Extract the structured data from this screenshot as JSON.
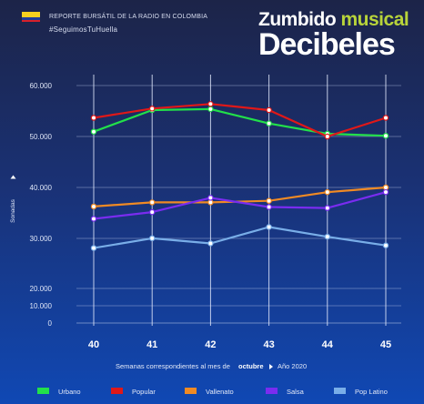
{
  "header": {
    "report_line": "REPORTE BURSÁTIL DE LA RADIO EN COLOMBIA",
    "hashtag": "#SeguimosTuHuella",
    "flag_colors": [
      "#f5d020",
      "#1f3c9a",
      "#d6202a"
    ]
  },
  "brand": {
    "word1": "Zumbido",
    "word2": "musical",
    "word3": "Decibeles",
    "accent_color": "#b8d43a"
  },
  "chart_data": {
    "type": "line",
    "x": [
      40,
      41,
      42,
      43,
      44,
      45
    ],
    "series": [
      {
        "name": "Urbano",
        "color": "#22e04a",
        "values": [
          51000,
          55200,
          55400,
          52600,
          50600,
          50200
        ]
      },
      {
        "name": "Popular",
        "color": "#e01818",
        "values": [
          53700,
          55500,
          56400,
          55200,
          50000,
          53700
        ]
      },
      {
        "name": "Vallenato",
        "color": "#f08a24",
        "values": [
          36400,
          37200,
          37200,
          37500,
          39200,
          40000
        ]
      },
      {
        "name": "Salsa",
        "color": "#7a2cf0",
        "values": [
          34000,
          35300,
          38100,
          36300,
          36100,
          39200
        ]
      },
      {
        "name": "Pop Latino",
        "color": "#79aee8",
        "values": [
          28300,
          30200,
          29200,
          32400,
          30500,
          28800
        ]
      }
    ],
    "ytick_labels": [
      "60.000",
      "50.000",
      "40.000",
      "30.000",
      "20.000",
      "10.000",
      "0"
    ],
    "ytick_values": [
      60000,
      50000,
      40000,
      30000,
      20000,
      10000,
      0
    ],
    "ylabel": "Sonadas",
    "xlabel_prefix": "Semanas correspondientes al mes de",
    "xlabel_month": "octubre",
    "xlabel_year": "Año 2020",
    "legend_position": "bottom",
    "grid": true
  }
}
